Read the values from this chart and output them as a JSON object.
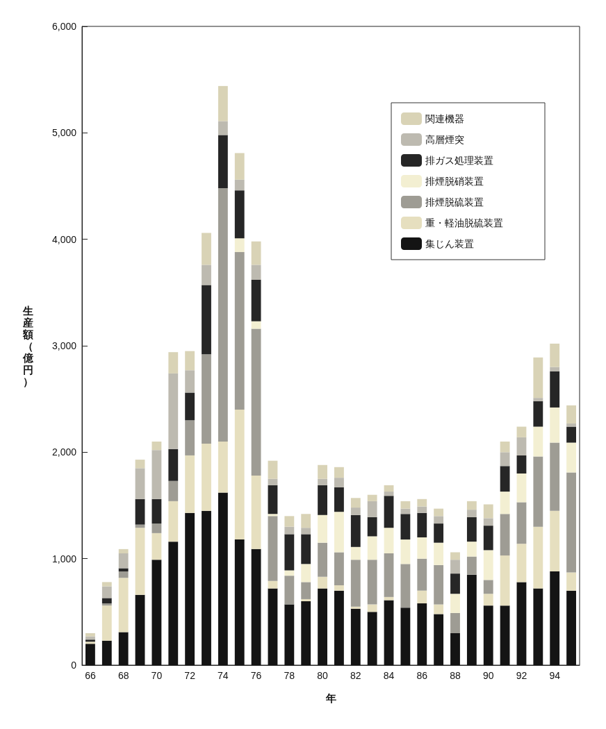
{
  "chart_data": {
    "type": "bar",
    "stacked": true,
    "xlabel": "年",
    "ylabel": "生産額（億円）",
    "categories": [
      "66",
      null,
      "68",
      null,
      "70",
      null,
      "72",
      null,
      "74",
      null,
      "76",
      null,
      "78",
      null,
      "80",
      null,
      "82",
      null,
      "84",
      null,
      "86",
      null,
      "88",
      null,
      "90",
      null,
      "92",
      null,
      "94",
      null
    ],
    "ylim": [
      0,
      6000
    ],
    "yticks": [
      {
        "value": 0,
        "label": "0"
      },
      {
        "value": 1000,
        "label": "1,000"
      },
      {
        "value": 2000,
        "label": "2,000"
      },
      {
        "value": 3000,
        "label": "3,000"
      },
      {
        "value": 4000,
        "label": "4,000"
      },
      {
        "value": 5000,
        "label": "5,000"
      },
      {
        "value": 6000,
        "label": "6,000"
      }
    ],
    "grid": false,
    "legend": "top right",
    "series": [
      {
        "name": "集じん装置",
        "color": "#141414",
        "values": [
          200,
          230,
          310,
          660,
          990,
          1160,
          1430,
          1450,
          1620,
          1180,
          1090,
          720,
          570,
          600,
          720,
          700,
          530,
          500,
          610,
          540,
          580,
          480,
          300,
          850,
          560,
          560,
          780,
          720,
          880,
          700
        ]
      },
      {
        "name": "重・軽油脱硫装置",
        "color": "#e6dfbf",
        "values": [
          20,
          330,
          510,
          630,
          250,
          380,
          540,
          630,
          480,
          1220,
          690,
          70,
          null,
          20,
          110,
          50,
          20,
          70,
          30,
          null,
          120,
          90,
          null,
          null,
          110,
          470,
          360,
          580,
          570,
          170
        ]
      },
      {
        "name": "排煙脱硫装置",
        "color": "#9e9c94",
        "values": [
          0,
          20,
          60,
          30,
          90,
          190,
          330,
          840,
          2380,
          1480,
          1380,
          610,
          270,
          160,
          320,
          310,
          440,
          420,
          410,
          410,
          300,
          370,
          190,
          170,
          130,
          390,
          390,
          660,
          640,
          940
        ]
      },
      {
        "name": "排煙脱硝装置",
        "color": "#f3efd2",
        "values": [
          0,
          0,
          0,
          0,
          0,
          0,
          0,
          0,
          0,
          130,
          70,
          20,
          50,
          170,
          260,
          380,
          120,
          220,
          240,
          230,
          200,
          210,
          180,
          140,
          280,
          210,
          270,
          280,
          330,
          280
        ]
      },
      {
        "name": "排ガス処理装置",
        "color": "#262626",
        "values": [
          20,
          50,
          30,
          240,
          230,
          300,
          260,
          650,
          500,
          450,
          390,
          270,
          340,
          280,
          280,
          230,
          300,
          180,
          300,
          240,
          230,
          180,
          190,
          230,
          230,
          240,
          170,
          240,
          340,
          150
        ]
      },
      {
        "name": "高層煙突",
        "color": "#bdbab0",
        "values": [
          30,
          110,
          140,
          290,
          460,
          710,
          210,
          190,
          130,
          100,
          140,
          60,
          70,
          60,
          60,
          90,
          70,
          150,
          40,
          50,
          60,
          70,
          130,
          70,
          70,
          130,
          170,
          30,
          40,
          30
        ]
      },
      {
        "name": "関連機器",
        "color": "#d9d3b6",
        "values": [
          30,
          40,
          40,
          80,
          80,
          200,
          180,
          300,
          330,
          250,
          220,
          170,
          100,
          130,
          130,
          100,
          90,
          60,
          60,
          70,
          70,
          70,
          70,
          80,
          130,
          100,
          100,
          380,
          220,
          170
        ]
      }
    ]
  }
}
